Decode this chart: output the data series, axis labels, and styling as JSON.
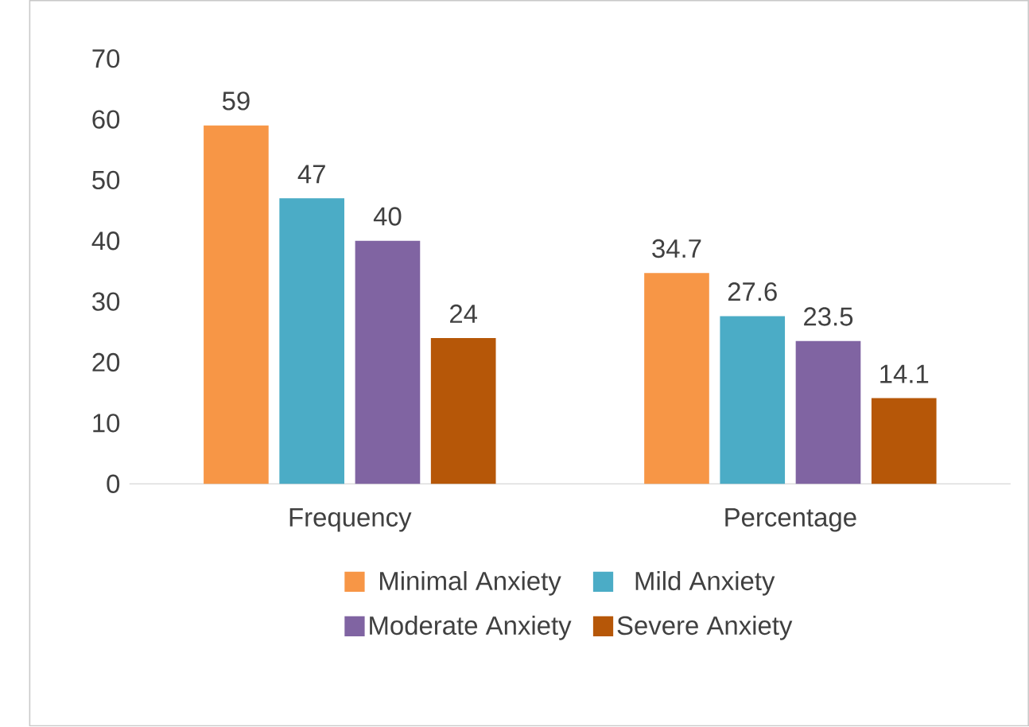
{
  "chart_data": {
    "type": "bar",
    "categories": [
      "Frequency",
      "Percentage"
    ],
    "series": [
      {
        "name": "Minimal Anxiety",
        "color": "#f79646",
        "values": [
          59,
          34.7
        ]
      },
      {
        "name": "Mild Anxiety",
        "color": "#4bacc6",
        "values": [
          47,
          27.6
        ]
      },
      {
        "name": "Moderate Anxiety",
        "color": "#8064a2",
        "values": [
          40,
          23.5
        ]
      },
      {
        "name": "Severe Anxiety",
        "color": "#b65708",
        "values": [
          24,
          14.1
        ]
      }
    ],
    "ylim": [
      0,
      70
    ],
    "yticks": [
      0,
      10,
      20,
      30,
      40,
      50,
      60,
      70
    ],
    "data_labels": true,
    "grid": false,
    "legend": "bottom"
  }
}
